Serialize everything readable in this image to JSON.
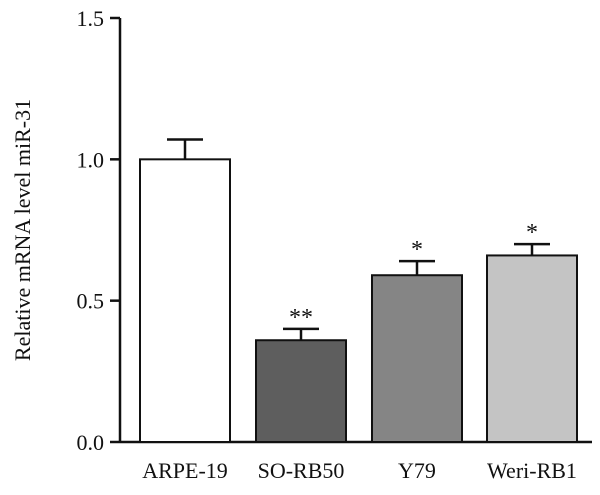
{
  "chart_data": {
    "type": "bar",
    "title": "",
    "xlabel": "",
    "ylabel": "Relative mRNA level miR-31",
    "ylim": [
      0,
      1.5
    ],
    "yticks": [
      "0.0",
      "0.5",
      "1.0",
      "1.5"
    ],
    "grid": false,
    "categories": [
      "ARPE-19",
      "SO-RB50",
      "Y79",
      "Weri-RB1"
    ],
    "values": [
      1.0,
      0.36,
      0.59,
      0.66
    ],
    "errors": [
      0.07,
      0.04,
      0.05,
      0.04
    ],
    "significance": [
      "",
      "**",
      "*",
      "*"
    ],
    "colors": [
      "#ffffff",
      "#5e5e5e",
      "#858585",
      "#c4c4c4"
    ],
    "edge_color": "#111111"
  }
}
